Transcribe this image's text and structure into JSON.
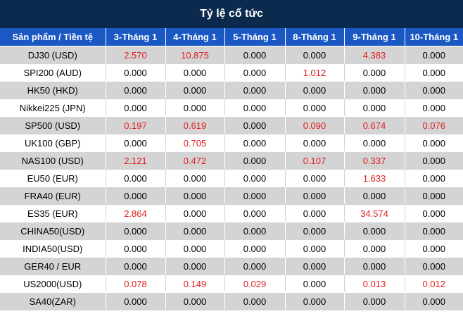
{
  "title": "Tỷ lệ cổ tức",
  "headers": [
    "Sản phẩm / Tiền tệ",
    "3-Tháng 1",
    "4-Tháng 1",
    "5-Tháng 1",
    "8-Tháng 1",
    "9-Tháng 1",
    "10-Tháng 1"
  ],
  "colors": {
    "title_bg": "#0c2a4e",
    "header_bg": "#1b58c4",
    "row_alt_bg": "#d4d4d4",
    "positive_value": "#e01e1e"
  },
  "rows": [
    {
      "product": "DJ30 (USD)",
      "values": [
        "2.570",
        "10.875",
        "0.000",
        "0.000",
        "4.383",
        "0.000"
      ]
    },
    {
      "product": "SPI200 (AUD)",
      "values": [
        "0.000",
        "0.000",
        "0.000",
        "1.012",
        "0.000",
        "0.000"
      ]
    },
    {
      "product": "HK50 (HKD)",
      "values": [
        "0.000",
        "0.000",
        "0.000",
        "0.000",
        "0.000",
        "0.000"
      ]
    },
    {
      "product": "Nikkei225 (JPN)",
      "values": [
        "0.000",
        "0.000",
        "0.000",
        "0.000",
        "0.000",
        "0.000"
      ]
    },
    {
      "product": "SP500 (USD)",
      "values": [
        "0.197",
        "0.619",
        "0.000",
        "0.090",
        "0.674",
        "0.076"
      ]
    },
    {
      "product": "UK100 (GBP)",
      "values": [
        "0.000",
        "0.705",
        "0.000",
        "0.000",
        "0.000",
        "0.000"
      ]
    },
    {
      "product": "NAS100 (USD)",
      "values": [
        "2.121",
        "0.472",
        "0.000",
        "0.107",
        "0.337",
        "0.000"
      ]
    },
    {
      "product": "EU50 (EUR)",
      "values": [
        "0.000",
        "0.000",
        "0.000",
        "0.000",
        "1.633",
        "0.000"
      ]
    },
    {
      "product": "FRA40 (EUR)",
      "values": [
        "0.000",
        "0.000",
        "0.000",
        "0.000",
        "0.000",
        "0.000"
      ]
    },
    {
      "product": "ES35 (EUR)",
      "values": [
        "2.864",
        "0.000",
        "0.000",
        "0.000",
        "34.574",
        "0.000"
      ]
    },
    {
      "product": "CHINA50(USD)",
      "values": [
        "0.000",
        "0.000",
        "0.000",
        "0.000",
        "0.000",
        "0.000"
      ]
    },
    {
      "product": "INDIA50(USD)",
      "values": [
        "0.000",
        "0.000",
        "0.000",
        "0.000",
        "0.000",
        "0.000"
      ]
    },
    {
      "product": "GER40 / EUR",
      "values": [
        "0.000",
        "0.000",
        "0.000",
        "0.000",
        "0.000",
        "0.000"
      ]
    },
    {
      "product": "US2000(USD)",
      "values": [
        "0.078",
        "0.149",
        "0.029",
        "0.000",
        "0.013",
        "0.012"
      ]
    },
    {
      "product": "SA40(ZAR)",
      "values": [
        "0.000",
        "0.000",
        "0.000",
        "0.000",
        "0.000",
        "0.000"
      ]
    }
  ]
}
